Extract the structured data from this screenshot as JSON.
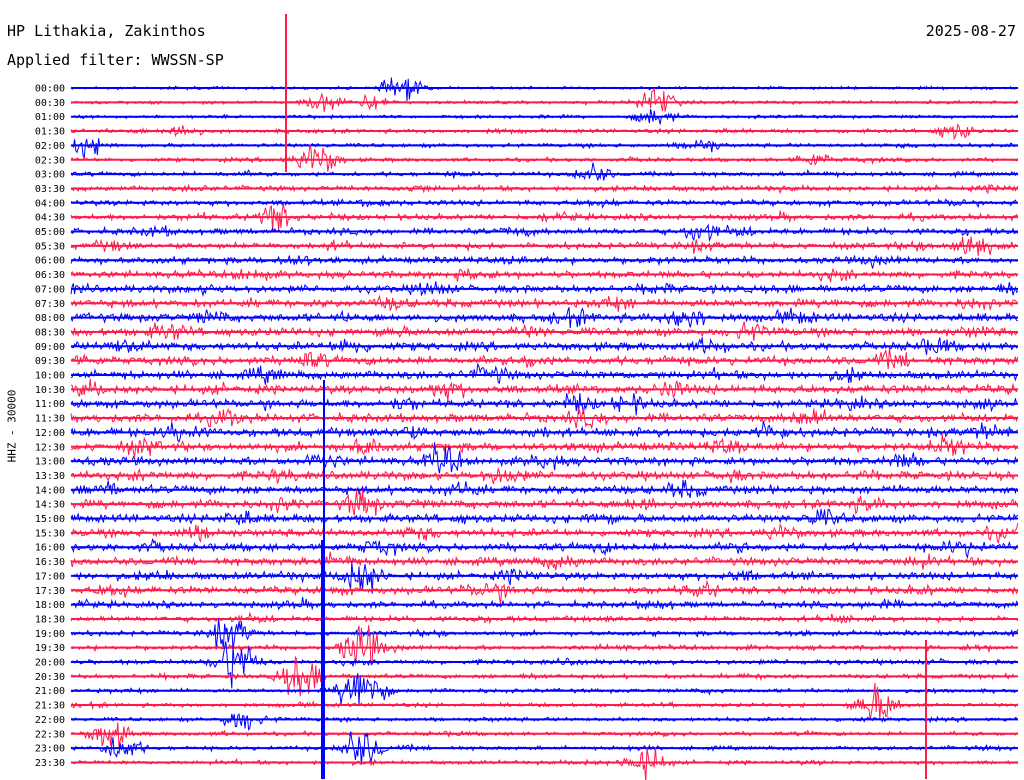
{
  "header": {
    "station": "HP Lithakia, Zakinthos",
    "date": "2025-08-27",
    "filter": "Applied filter: WWSSN-SP"
  },
  "channel_label": "HHZ - 30000",
  "colors": {
    "even": "#0000ff",
    "odd": "#ff1a4a",
    "text": "#000000"
  },
  "chart_data": {
    "type": "line",
    "title": "HP Lithakia, Zakinthos",
    "ylabel": "HHZ - 30000",
    "trace_interval_minutes": 30,
    "start_labels": [
      "00:00",
      "00:30",
      "01:00",
      "01:30",
      "02:00",
      "02:30",
      "03:00",
      "03:30",
      "04:00",
      "04:30",
      "05:00",
      "05:30",
      "06:00",
      "06:30",
      "07:00",
      "07:30",
      "08:00",
      "08:30",
      "09:00",
      "09:30",
      "10:00",
      "10:30",
      "11:00",
      "11:30",
      "12:00",
      "12:30",
      "13:00",
      "13:30",
      "14:00",
      "14:30",
      "15:00",
      "15:30",
      "16:00",
      "16:30",
      "17:00",
      "17:30",
      "18:00",
      "18:30",
      "19:00",
      "19:30",
      "20:00",
      "20:30",
      "21:00",
      "21:30",
      "22:00",
      "22:30",
      "23:00",
      "23:30"
    ],
    "activity_level": [
      0.15,
      0.2,
      0.2,
      0.3,
      0.3,
      0.3,
      0.35,
      0.45,
      0.5,
      0.55,
      0.6,
      0.6,
      0.65,
      0.7,
      0.75,
      0.8,
      0.85,
      0.85,
      0.85,
      0.85,
      0.85,
      0.9,
      0.85,
      0.9,
      0.9,
      0.9,
      0.85,
      0.85,
      0.85,
      0.85,
      0.85,
      0.8,
      0.8,
      0.8,
      0.75,
      0.75,
      0.6,
      0.5,
      0.4,
      0.4,
      0.4,
      0.35,
      0.3,
      0.3,
      0.3,
      0.3,
      0.3,
      0.3
    ],
    "events": [
      {
        "trace": 0,
        "minute": 10.5,
        "amplitude": 18
      },
      {
        "trace": 1,
        "minute": 18.5,
        "amplitude": 22
      },
      {
        "trace": 1,
        "minute": 8,
        "amplitude": 14
      },
      {
        "trace": 1,
        "minute": 9.5,
        "amplitude": 12
      },
      {
        "trace": 2,
        "minute": 18.5,
        "amplitude": 14
      },
      {
        "trace": 3,
        "minute": 28,
        "amplitude": 14
      },
      {
        "trace": 3,
        "minute": 3.5,
        "amplitude": 12
      },
      {
        "trace": 4,
        "minute": 0.5,
        "amplitude": 16
      },
      {
        "trace": 4,
        "minute": 20,
        "amplitude": 12
      },
      {
        "trace": 5,
        "minute": 7.8,
        "amplitude": 26
      },
      {
        "trace": 5,
        "minute": 23.5,
        "amplitude": 12
      },
      {
        "trace": 6,
        "minute": 16.5,
        "amplitude": 16
      },
      {
        "trace": 9,
        "minute": 6.5,
        "amplitude": 22
      },
      {
        "trace": 10,
        "minute": 20,
        "amplitude": 18
      },
      {
        "trace": 11,
        "minute": 28.5,
        "amplitude": 22
      },
      {
        "trace": 16,
        "minute": 19.5,
        "amplitude": 22
      },
      {
        "trace": 22,
        "minute": 16,
        "amplitude": 18
      },
      {
        "trace": 26,
        "minute": 11.8,
        "amplitude": 24
      },
      {
        "trace": 29,
        "minute": 9.2,
        "amplitude": 22
      },
      {
        "trace": 34,
        "minute": 9.2,
        "amplitude": 30
      },
      {
        "trace": 35,
        "minute": 13.5,
        "amplitude": 18
      },
      {
        "trace": 38,
        "minute": 5,
        "amplitude": 26
      },
      {
        "trace": 39,
        "minute": 9.2,
        "amplitude": 34
      },
      {
        "trace": 40,
        "minute": 5.2,
        "amplitude": 40
      },
      {
        "trace": 41,
        "minute": 7.3,
        "amplitude": 34
      },
      {
        "trace": 42,
        "minute": 9.2,
        "amplitude": 44
      },
      {
        "trace": 43,
        "minute": 25.5,
        "amplitude": 30
      },
      {
        "trace": 44,
        "minute": 5.4,
        "amplitude": 18
      },
      {
        "trace": 45,
        "minute": 1.2,
        "amplitude": 22
      },
      {
        "trace": 46,
        "minute": 1.6,
        "amplitude": 20
      },
      {
        "trace": 46,
        "minute": 9.2,
        "amplitude": 30
      },
      {
        "trace": 47,
        "minute": 18.2,
        "amplitude": 24
      }
    ],
    "grid": false,
    "legend": "none"
  }
}
